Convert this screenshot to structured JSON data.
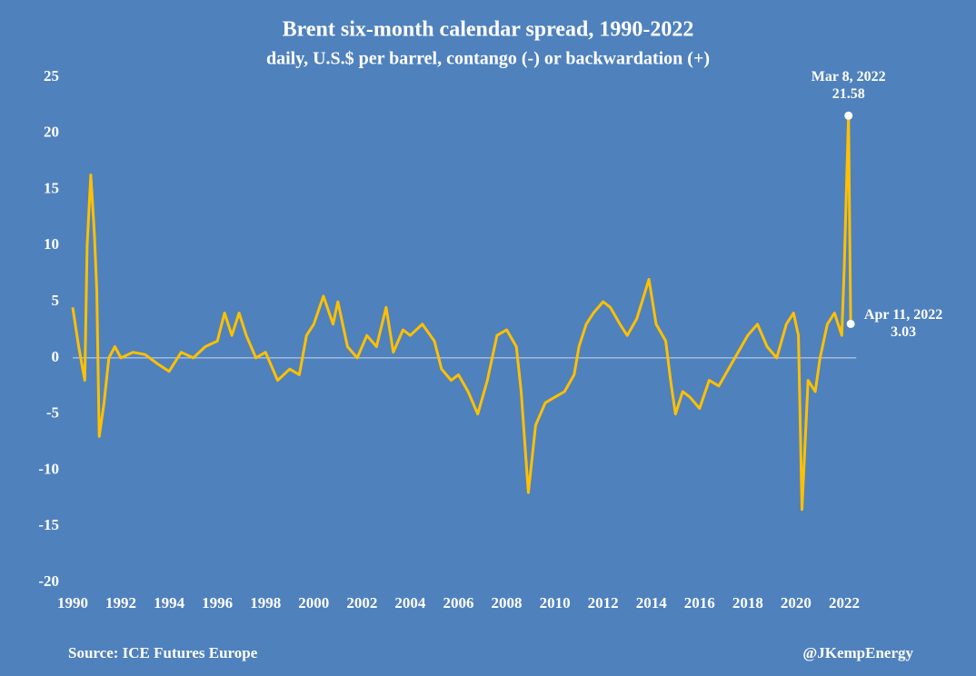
{
  "chart_data": {
    "type": "line",
    "title": "Brent six-month calendar spread, 1990-2022",
    "subtitle": "daily, U.S.$ per barrel, contango (-) or backwardation (+)",
    "color": "#ffc000",
    "x": [
      1990.0,
      1990.25,
      1990.5,
      1990.6,
      1990.75,
      1990.9,
      1991.0,
      1991.1,
      1991.3,
      1991.5,
      1991.75,
      1992.0,
      1992.5,
      1993.0,
      1993.5,
      1994.0,
      1994.5,
      1995.0,
      1995.5,
      1996.0,
      1996.3,
      1996.6,
      1996.9,
      1997.2,
      1997.6,
      1998.0,
      1998.5,
      1999.0,
      1999.4,
      1999.7,
      2000.0,
      2000.4,
      2000.8,
      2001.0,
      2001.4,
      2001.8,
      2002.2,
      2002.6,
      2003.0,
      2003.3,
      2003.7,
      2004.0,
      2004.5,
      2005.0,
      2005.3,
      2005.7,
      2006.0,
      2006.4,
      2006.8,
      2007.2,
      2007.6,
      2008.0,
      2008.4,
      2008.6,
      2008.9,
      2009.2,
      2009.6,
      2010.0,
      2010.4,
      2010.8,
      2011.0,
      2011.3,
      2011.6,
      2012.0,
      2012.3,
      2012.7,
      2013.0,
      2013.4,
      2013.9,
      2014.2,
      2014.6,
      2014.8,
      2015.0,
      2015.3,
      2015.6,
      2016.0,
      2016.4,
      2016.8,
      2017.2,
      2017.6,
      2018.0,
      2018.4,
      2018.8,
      2019.2,
      2019.6,
      2019.9,
      2020.1,
      2020.25,
      2020.5,
      2020.8,
      2021.0,
      2021.3,
      2021.6,
      2021.9,
      2022.0,
      2022.18,
      2022.27
    ],
    "values": [
      4.5,
      1,
      -2,
      10,
      16.3,
      11,
      6,
      -7,
      -4,
      0,
      1,
      0,
      0.5,
      0.3,
      -0.5,
      -1.2,
      0.5,
      0,
      1,
      1.5,
      4,
      2,
      4,
      2,
      0,
      0.5,
      -2,
      -1,
      -1.5,
      2,
      3,
      5.5,
      3,
      5,
      1,
      0,
      2,
      1,
      4.5,
      0.5,
      2.5,
      2,
      3,
      1.5,
      -1,
      -2,
      -1.5,
      -3,
      -5,
      -2,
      2,
      2.5,
      1,
      -3,
      -12,
      -6,
      -4,
      -3.5,
      -3,
      -1.5,
      1,
      3,
      4,
      5,
      4.5,
      3,
      2,
      3.5,
      7,
      3,
      1.5,
      -2,
      -5,
      -3,
      -3.5,
      -4.5,
      -2,
      -2.5,
      -1,
      0.5,
      2,
      3,
      1,
      0,
      3,
      4,
      2,
      -13.5,
      -2,
      -3,
      0,
      3,
      4,
      2,
      8,
      21.58,
      3.03
    ],
    "xlim": [
      1990,
      2022.5
    ],
    "xticks": [
      1990,
      1992,
      1994,
      1996,
      1998,
      2000,
      2002,
      2004,
      2006,
      2008,
      2010,
      2012,
      2014,
      2016,
      2018,
      2020,
      2022
    ],
    "ylim": [
      -20,
      25
    ],
    "yticks": [
      -20,
      -15,
      -10,
      -5,
      0,
      5,
      10,
      15,
      20,
      25
    ],
    "annotations": [
      {
        "label": "Mar 8, 2022",
        "x": 2022.18,
        "value": 21.58
      },
      {
        "label": "Apr 11, 2022",
        "x": 2022.27,
        "value": 3.03
      }
    ],
    "source": "Source: ICE Futures Europe",
    "credit": "@JKempEnergy"
  }
}
